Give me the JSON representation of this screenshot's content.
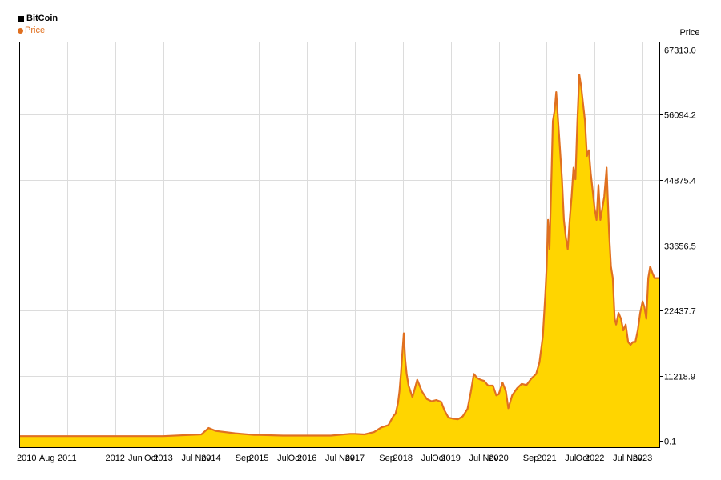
{
  "chart_data": {
    "type": "area",
    "title": "BitCoin",
    "ylabel": "Price",
    "xlabel": "",
    "legend_position": "top-left",
    "grid": true,
    "ylim": [
      0.1,
      67313.0
    ],
    "xlim": [
      2010.0,
      2023.35
    ],
    "y_ticks": [
      0.1,
      11218.9,
      22437.7,
      33656.5,
      44875.4,
      56094.2,
      67313.0
    ],
    "y_tick_labels": [
      "0.1",
      "11218.9",
      "22437.7",
      "33656.5",
      "44875.4",
      "56094.2",
      "67313.0"
    ],
    "x_tick_labels": [
      {
        "label": "2010",
        "x": 2010.0
      },
      {
        "label": "Aug",
        "x": 2010.58
      },
      {
        "label": "2011",
        "x": 2011.0
      },
      {
        "label": "2012",
        "x": 2012.0
      },
      {
        "label": "Jun",
        "x": 2012.42
      },
      {
        "label": "Oct",
        "x": 2012.75
      },
      {
        "label": "2013",
        "x": 2013.0
      },
      {
        "label": "Jul",
        "x": 2013.5
      },
      {
        "label": "Nov",
        "x": 2013.83
      },
      {
        "label": "2014",
        "x": 2014.0
      },
      {
        "label": "Sep",
        "x": 2014.67
      },
      {
        "label": "2015",
        "x": 2015.0
      },
      {
        "label": "Jul",
        "x": 2015.5
      },
      {
        "label": "Oct",
        "x": 2015.75
      },
      {
        "label": "2016",
        "x": 2016.0
      },
      {
        "label": "Jul",
        "x": 2016.5
      },
      {
        "label": "Nov",
        "x": 2016.83
      },
      {
        "label": "2017",
        "x": 2017.0
      },
      {
        "label": "Sep",
        "x": 2017.67
      },
      {
        "label": "2018",
        "x": 2018.0
      },
      {
        "label": "Jul",
        "x": 2018.5
      },
      {
        "label": "Oct",
        "x": 2018.75
      },
      {
        "label": "2019",
        "x": 2019.0
      },
      {
        "label": "Jul",
        "x": 2019.5
      },
      {
        "label": "Nov",
        "x": 2019.83
      },
      {
        "label": "2020",
        "x": 2020.0
      },
      {
        "label": "Sep",
        "x": 2020.67
      },
      {
        "label": "2021",
        "x": 2021.0
      },
      {
        "label": "Jul",
        "x": 2021.5
      },
      {
        "label": "Oct",
        "x": 2021.75
      },
      {
        "label": "2022",
        "x": 2022.0
      },
      {
        "label": "Jul",
        "x": 2022.5
      },
      {
        "label": "Nov",
        "x": 2022.83
      },
      {
        "label": "2023",
        "x": 2023.0
      }
    ],
    "vertical_gridlines_x": [
      2011.0,
      2012.0,
      2013.0,
      2014.0,
      2015.0,
      2016.0,
      2017.0,
      2018.0,
      2019.0,
      2020.0,
      2021.0,
      2022.0,
      2023.0
    ],
    "series": [
      {
        "name": "Price",
        "line_color": "#e07020",
        "fill_color": "#ffd500",
        "x": [
          2010.0,
          2011.0,
          2012.0,
          2013.0,
          2013.8,
          2013.95,
          2014.1,
          2014.5,
          2014.9,
          2015.0,
          2015.5,
          2015.9,
          2016.0,
          2016.5,
          2016.9,
          2017.0,
          2017.2,
          2017.4,
          2017.55,
          2017.7,
          2017.8,
          2017.85,
          2017.9,
          2017.93,
          2017.96,
          2017.99,
          2018.02,
          2018.05,
          2018.08,
          2018.12,
          2018.2,
          2018.3,
          2018.4,
          2018.5,
          2018.6,
          2018.7,
          2018.8,
          2018.87,
          2018.95,
          2019.05,
          2019.15,
          2019.25,
          2019.35,
          2019.42,
          2019.48,
          2019.55,
          2019.62,
          2019.7,
          2019.78,
          2019.88,
          2019.95,
          2020.0,
          2020.08,
          2020.15,
          2020.2,
          2020.28,
          2020.38,
          2020.48,
          2020.58,
          2020.68,
          2020.78,
          2020.85,
          2020.92,
          2020.97,
          2021.0,
          2021.03,
          2021.06,
          2021.1,
          2021.13,
          2021.17,
          2021.2,
          2021.24,
          2021.28,
          2021.32,
          2021.36,
          2021.4,
          2021.44,
          2021.48,
          2021.52,
          2021.56,
          2021.6,
          2021.64,
          2021.68,
          2021.72,
          2021.76,
          2021.8,
          2021.84,
          2021.88,
          2021.92,
          2021.96,
          2022.0,
          2022.04,
          2022.08,
          2022.12,
          2022.16,
          2022.2,
          2022.25,
          2022.3,
          2022.34,
          2022.38,
          2022.42,
          2022.45,
          2022.5,
          2022.55,
          2022.6,
          2022.65,
          2022.7,
          2022.75,
          2022.8,
          2022.85,
          2022.9,
          2022.95,
          2023.0,
          2023.04,
          2023.08,
          2023.12,
          2023.16,
          2023.2,
          2023.25,
          2023.3,
          2023.35
        ],
        "y": [
          800,
          800,
          800,
          800,
          1100,
          2200,
          1700,
          1300,
          1000,
          1000,
          900,
          900,
          900,
          900,
          1200,
          1200,
          1100,
          1500,
          2300,
          2700,
          4200,
          4700,
          6500,
          8500,
          11500,
          15000,
          18500,
          14000,
          11500,
          9500,
          7500,
          10500,
          8500,
          7200,
          6800,
          7000,
          6700,
          5200,
          4000,
          3800,
          3700,
          4200,
          5500,
          8500,
          11500,
          10800,
          10500,
          10300,
          9500,
          9500,
          7800,
          8000,
          10000,
          8500,
          5600,
          7800,
          9000,
          9800,
          9600,
          10700,
          11500,
          13500,
          18000,
          25000,
          30000,
          38000,
          33000,
          45000,
          55000,
          57000,
          60000,
          55000,
          50000,
          45000,
          38000,
          35000,
          33000,
          38000,
          42000,
          47000,
          45000,
          55000,
          63000,
          61000,
          58000,
          55000,
          49000,
          50000,
          46000,
          43000,
          40000,
          38000,
          44000,
          38000,
          40000,
          42000,
          47000,
          36000,
          30000,
          28000,
          21000,
          20000,
          22000,
          21000,
          19000,
          20000,
          17000,
          16500,
          17000,
          17000,
          19000,
          22000,
          24000,
          23000,
          21000,
          28000,
          30000,
          29000,
          28000,
          28000,
          28000
        ]
      }
    ]
  }
}
